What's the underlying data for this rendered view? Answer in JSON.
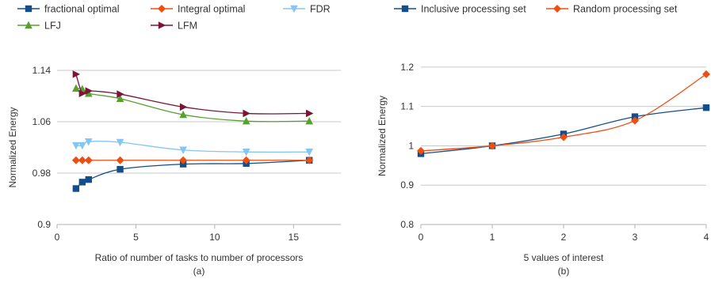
{
  "chart_data": [
    {
      "type": "line",
      "xlabel": "Ratio of number of tasks to number of processors",
      "ylabel": "Normalized Energy",
      "caption": "(a)",
      "xlim": [
        0,
        18
      ],
      "ylim": [
        0.9,
        1.14
      ],
      "xticks": [
        "0",
        "5",
        "10",
        "15"
      ],
      "xtick_values": [
        0,
        5,
        10,
        15
      ],
      "yticks": [
        "0.9",
        "0.98",
        "1.06",
        "1.14"
      ],
      "ytick_values": [
        0.9,
        0.98,
        1.06,
        1.14
      ],
      "grid": "horizontal",
      "legend_position": "top",
      "series": [
        {
          "name": "fractional optimal",
          "color": "#134e8a",
          "marker": "square",
          "x": [
            1.2,
            1.6,
            2,
            4,
            8,
            12,
            16
          ],
          "y": [
            0.956,
            0.966,
            0.97,
            0.986,
            0.994,
            0.995,
            1.0
          ]
        },
        {
          "name": "Integral optimal",
          "color": "#ee4e10",
          "marker": "diamond",
          "x": [
            1.2,
            1.6,
            2,
            4,
            8,
            12,
            16
          ],
          "y": [
            1.0,
            1.0,
            1.0,
            1.0,
            1.0,
            1.0,
            1.0
          ]
        },
        {
          "name": "FDR",
          "color": "#83c5f3",
          "marker": "triangle-down",
          "x": [
            1.2,
            1.6,
            2,
            4,
            8,
            12,
            16
          ],
          "y": [
            1.023,
            1.023,
            1.029,
            1.028,
            1.016,
            1.013,
            1.013
          ]
        },
        {
          "name": "LFJ",
          "color": "#57a030",
          "marker": "triangle-up",
          "x": [
            1.2,
            1.6,
            2,
            4,
            8,
            12,
            16
          ],
          "y": [
            1.112,
            1.111,
            1.104,
            1.096,
            1.071,
            1.061,
            1.061
          ]
        },
        {
          "name": "LFM",
          "color": "#7b1435",
          "marker": "triangle-right",
          "x": [
            1.2,
            1.6,
            2,
            4,
            8,
            12,
            16
          ],
          "y": [
            1.134,
            1.104,
            1.108,
            1.103,
            1.083,
            1.073,
            1.073
          ]
        }
      ]
    },
    {
      "type": "line",
      "xlabel": "5 values of interest",
      "ylabel": "Normalized Energy",
      "caption": "(b)",
      "xlim": [
        0,
        4
      ],
      "ylim": [
        0.8,
        1.25
      ],
      "xticks": [
        "0",
        "1",
        "2",
        "3",
        "4"
      ],
      "xtick_values": [
        0,
        1,
        2,
        3,
        4
      ],
      "yticks": [
        "0.8",
        "0.9",
        "1",
        "1.1",
        "1.2"
      ],
      "ytick_values": [
        0.8,
        0.9,
        1.0,
        1.1,
        1.2
      ],
      "grid": "horizontal",
      "legend_position": "top",
      "series": [
        {
          "name": "Inclusive processing set",
          "color": "#134e8a",
          "marker": "square",
          "x": [
            0,
            1,
            2,
            3,
            4
          ],
          "y": [
            0.98,
            1.0,
            1.03,
            1.074,
            1.097
          ]
        },
        {
          "name": "Random processing set",
          "color": "#ee4e10",
          "marker": "diamond",
          "x": [
            0,
            1,
            2,
            3,
            4
          ],
          "y": [
            0.987,
            1.0,
            1.022,
            1.064,
            1.182
          ]
        }
      ]
    }
  ]
}
